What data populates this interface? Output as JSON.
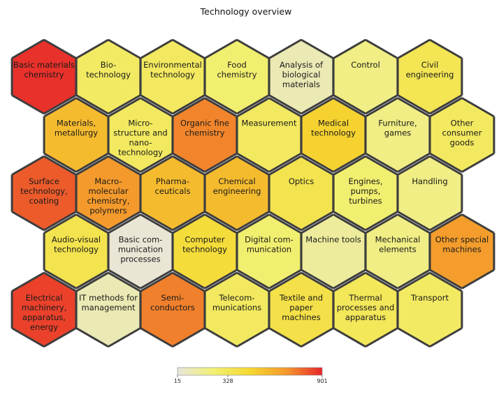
{
  "chart_data": {
    "type": "heatmap",
    "title": "Technology overview",
    "colorbar": {
      "min": 15,
      "mid": 328,
      "max": 901,
      "tick_labels": [
        "15",
        "328",
        "901"
      ],
      "colors": [
        "#e8e5dc",
        "#f1f073",
        "#f5d830",
        "#f49a2c",
        "#e8262b"
      ]
    },
    "group_border_color": "#3d3d3d",
    "cells": [
      {
        "row": 0,
        "col": 0,
        "lines": [
          "Basic materials",
          "chemistry"
        ],
        "value": 880
      },
      {
        "row": 0,
        "col": 1,
        "lines": [
          "Bio-",
          "technology"
        ],
        "value": 290
      },
      {
        "row": 0,
        "col": 2,
        "lines": [
          "Environmental",
          "technology"
        ],
        "value": 300
      },
      {
        "row": 0,
        "col": 3,
        "lines": [
          "Food",
          "chemistry"
        ],
        "value": 250
      },
      {
        "row": 0,
        "col": 4,
        "lines": [
          "Analysis of",
          "biological",
          "materials"
        ],
        "value": 100
      },
      {
        "row": 0,
        "col": 5,
        "lines": [
          "Control"
        ],
        "value": 200
      },
      {
        "row": 0,
        "col": 6,
        "lines": [
          "Civil",
          "engineering"
        ],
        "value": 340
      },
      {
        "row": 1,
        "col": 0,
        "lines": [
          "Materials,",
          "metallurgy"
        ],
        "value": 560
      },
      {
        "row": 1,
        "col": 1,
        "lines": [
          "Micro-",
          "structure and",
          "nano-",
          "technology"
        ],
        "value": 300
      },
      {
        "row": 1,
        "col": 2,
        "lines": [
          "Organic fine",
          "chemistry"
        ],
        "value": 720
      },
      {
        "row": 1,
        "col": 3,
        "lines": [
          "Measurement"
        ],
        "value": 300
      },
      {
        "row": 1,
        "col": 4,
        "lines": [
          "Medical",
          "technology"
        ],
        "value": 480
      },
      {
        "row": 1,
        "col": 5,
        "lines": [
          "Furniture,",
          "games"
        ],
        "value": 200
      },
      {
        "row": 1,
        "col": 6,
        "lines": [
          "Other",
          "consumer",
          "goods"
        ],
        "value": 300
      },
      {
        "row": 2,
        "col": 0,
        "lines": [
          "Surface",
          "technology,",
          "coating"
        ],
        "value": 800
      },
      {
        "row": 2,
        "col": 1,
        "lines": [
          "Macro-",
          "molecular",
          "chemistry,",
          "polymers"
        ],
        "value": 680
      },
      {
        "row": 2,
        "col": 2,
        "lines": [
          "Pharma-",
          "ceuticals"
        ],
        "value": 560
      },
      {
        "row": 2,
        "col": 3,
        "lines": [
          "Chemical",
          "engineering"
        ],
        "value": 560
      },
      {
        "row": 2,
        "col": 4,
        "lines": [
          "Optics"
        ],
        "value": 360
      },
      {
        "row": 2,
        "col": 5,
        "lines": [
          "Engines,",
          "pumps,",
          "turbines"
        ],
        "value": 250
      },
      {
        "row": 2,
        "col": 6,
        "lines": [
          "Handling"
        ],
        "value": 200
      },
      {
        "row": 3,
        "col": 0,
        "lines": [
          "Audio-visual",
          "technology"
        ],
        "value": 360
      },
      {
        "row": 3,
        "col": 1,
        "lines": [
          "Basic com-",
          "munication",
          "processes"
        ],
        "value": 30
      },
      {
        "row": 3,
        "col": 2,
        "lines": [
          "Computer",
          "technology"
        ],
        "value": 420
      },
      {
        "row": 3,
        "col": 3,
        "lines": [
          "Digital com-",
          "munication"
        ],
        "value": 250
      },
      {
        "row": 3,
        "col": 4,
        "lines": [
          "Machine tools"
        ],
        "value": 150
      },
      {
        "row": 3,
        "col": 5,
        "lines": [
          "Mechanical",
          "elements"
        ],
        "value": 200
      },
      {
        "row": 3,
        "col": 6,
        "lines": [
          "Other special",
          "machines"
        ],
        "value": 670
      },
      {
        "row": 4,
        "col": 0,
        "lines": [
          "Electrical",
          "machinery,",
          "apparatus,",
          "energy"
        ],
        "value": 850
      },
      {
        "row": 4,
        "col": 1,
        "lines": [
          "IT methods for",
          "management"
        ],
        "value": 100
      },
      {
        "row": 4,
        "col": 2,
        "lines": [
          "Semi-",
          "conductors"
        ],
        "value": 730
      },
      {
        "row": 4,
        "col": 3,
        "lines": [
          "Telecom-",
          "munications"
        ],
        "value": 300
      },
      {
        "row": 4,
        "col": 4,
        "lines": [
          "Textile and",
          "paper",
          "machines"
        ],
        "value": 380
      },
      {
        "row": 4,
        "col": 5,
        "lines": [
          "Thermal",
          "processes and",
          "apparatus"
        ],
        "value": 320
      },
      {
        "row": 4,
        "col": 6,
        "lines": [
          "Transport"
        ],
        "value": 290
      }
    ],
    "groups": [
      [
        [
          0,
          0
        ],
        [
          1,
          0
        ],
        [
          2,
          0
        ],
        [
          2,
          1
        ],
        [
          2,
          2
        ],
        [
          2,
          3
        ],
        [
          1,
          1
        ],
        [
          1,
          2
        ],
        [
          0,
          1
        ],
        [
          0,
          2
        ],
        [
          0,
          3
        ]
      ],
      [
        [
          3,
          0
        ],
        [
          3,
          1
        ],
        [
          3,
          2
        ],
        [
          3,
          3
        ],
        [
          4,
          0
        ],
        [
          4,
          1
        ],
        [
          4,
          2
        ],
        [
          4,
          3
        ]
      ],
      [
        [
          0,
          4
        ],
        [
          0,
          5
        ],
        [
          1,
          3
        ],
        [
          1,
          4
        ],
        [
          2,
          4
        ]
      ],
      [
        [
          0,
          6
        ],
        [
          1,
          6
        ],
        [
          1,
          5
        ]
      ],
      [
        [
          2,
          5
        ],
        [
          2,
          6
        ],
        [
          3,
          4
        ],
        [
          3,
          5
        ],
        [
          3,
          6
        ],
        [
          4,
          4
        ],
        [
          4,
          5
        ],
        [
          4,
          6
        ]
      ]
    ]
  }
}
